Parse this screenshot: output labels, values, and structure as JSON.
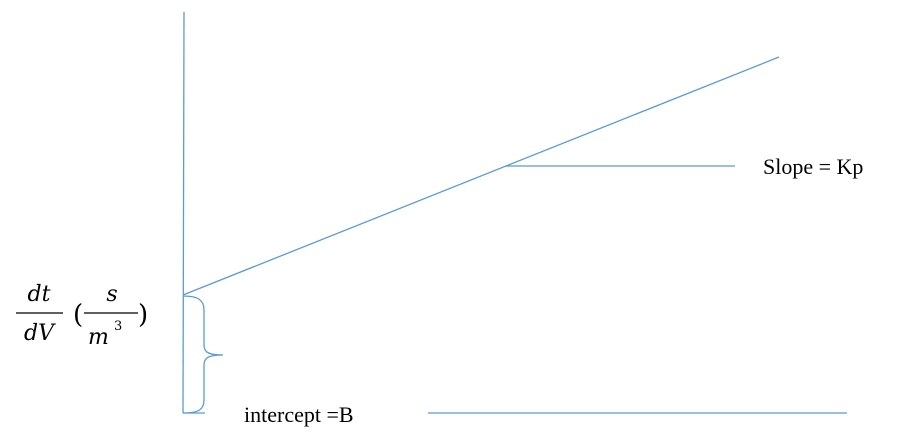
{
  "diagram": {
    "slope_label": "Slope = Kp",
    "intercept_label": "intercept =B",
    "y_axis_label": {
      "numerator": "dt",
      "denominator": "dV",
      "open_paren": "(",
      "unit_numerator": "s",
      "unit_denominator": "m",
      "unit_exponent": "3",
      "close_paren": ")"
    },
    "colors": {
      "lines": "#5b9bd5",
      "text": "#000000"
    }
  }
}
